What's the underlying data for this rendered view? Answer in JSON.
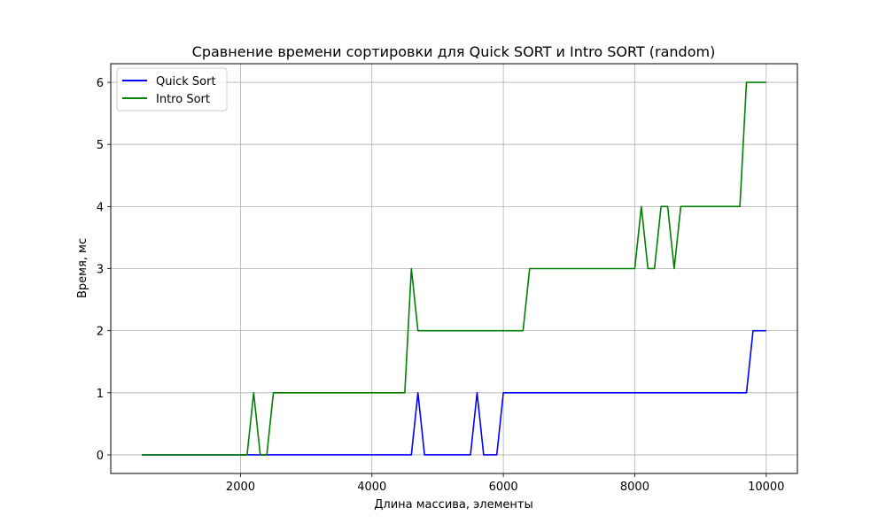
{
  "chart_data": {
    "type": "line",
    "title": "Сравнение времени сортировки для Quick SORT и Intro SORT (random)",
    "xlabel": "Длина массива, элементы",
    "ylabel": "Время, мс",
    "xlim": [
      25,
      10475
    ],
    "ylim": [
      -0.3,
      6.3
    ],
    "xticks": [
      2000,
      4000,
      6000,
      8000,
      10000
    ],
    "yticks": [
      0,
      1,
      2,
      3,
      4,
      5,
      6
    ],
    "grid": true,
    "legend_position": "top-left",
    "x": [
      500,
      600,
      700,
      800,
      900,
      1000,
      1100,
      1200,
      1300,
      1400,
      1500,
      1600,
      1700,
      1800,
      1900,
      2000,
      2100,
      2200,
      2300,
      2400,
      2500,
      2600,
      2700,
      2800,
      2900,
      3000,
      3100,
      3200,
      3300,
      3400,
      3500,
      3600,
      3700,
      3800,
      3900,
      4000,
      4100,
      4200,
      4300,
      4400,
      4500,
      4600,
      4700,
      4800,
      4900,
      5000,
      5100,
      5200,
      5300,
      5400,
      5500,
      5600,
      5700,
      5800,
      5900,
      6000,
      6100,
      6200,
      6300,
      6400,
      6500,
      6600,
      6700,
      6800,
      6900,
      7000,
      7100,
      7200,
      7300,
      7400,
      7500,
      7600,
      7700,
      7800,
      7900,
      8000,
      8100,
      8200,
      8300,
      8400,
      8500,
      8600,
      8700,
      8800,
      8900,
      9000,
      9100,
      9200,
      9300,
      9400,
      9500,
      9600,
      9700,
      9800,
      9900,
      10000
    ],
    "series": [
      {
        "name": "Quick Sort",
        "color": "#0000ff",
        "values": [
          0,
          0,
          0,
          0,
          0,
          0,
          0,
          0,
          0,
          0,
          0,
          0,
          0,
          0,
          0,
          0,
          0,
          0,
          0,
          0,
          0,
          0,
          0,
          0,
          0,
          0,
          0,
          0,
          0,
          0,
          0,
          0,
          0,
          0,
          0,
          0,
          0,
          0,
          0,
          0,
          0,
          0,
          1,
          0,
          0,
          0,
          0,
          0,
          0,
          0,
          0,
          1,
          0,
          0,
          0,
          1,
          1,
          1,
          1,
          1,
          1,
          1,
          1,
          1,
          1,
          1,
          1,
          1,
          1,
          1,
          1,
          1,
          1,
          1,
          1,
          1,
          1,
          1,
          1,
          1,
          1,
          1,
          1,
          1,
          1,
          1,
          1,
          1,
          1,
          1,
          1,
          1,
          1,
          2,
          2,
          2
        ]
      },
      {
        "name": "Intro Sort",
        "color": "#008000",
        "values": [
          0,
          0,
          0,
          0,
          0,
          0,
          0,
          0,
          0,
          0,
          0,
          0,
          0,
          0,
          0,
          0,
          0,
          1,
          0,
          0,
          1,
          1,
          1,
          1,
          1,
          1,
          1,
          1,
          1,
          1,
          1,
          1,
          1,
          1,
          1,
          1,
          1,
          1,
          1,
          1,
          1,
          3,
          2,
          2,
          2,
          2,
          2,
          2,
          2,
          2,
          2,
          2,
          2,
          2,
          2,
          2,
          2,
          2,
          2,
          3,
          3,
          3,
          3,
          3,
          3,
          3,
          3,
          3,
          3,
          3,
          3,
          3,
          3,
          3,
          3,
          3,
          4,
          3,
          3,
          4,
          4,
          3,
          4,
          4,
          4,
          4,
          4,
          4,
          4,
          4,
          4,
          4,
          6,
          6,
          6,
          6
        ]
      }
    ]
  }
}
